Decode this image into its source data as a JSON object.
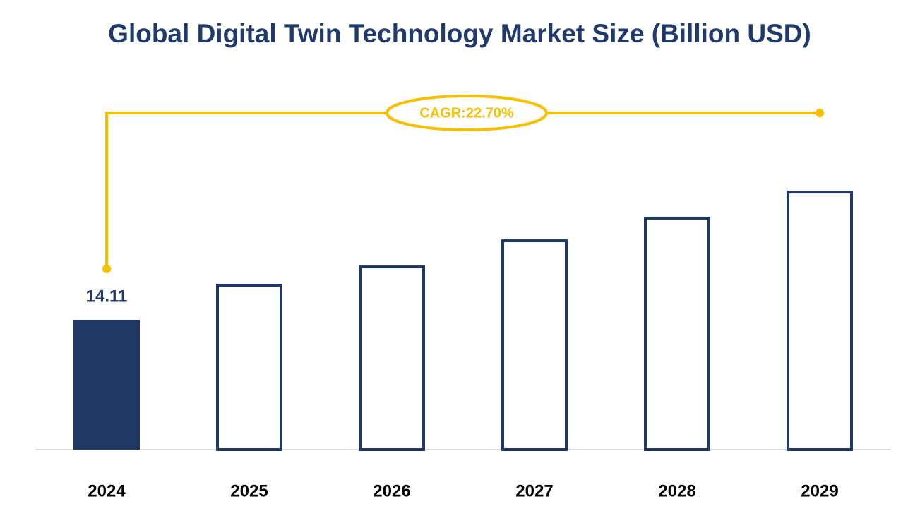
{
  "chart_data": {
    "type": "bar",
    "title": "Global Digital Twin Technology Market Size (Billion USD)",
    "categories": [
      "2024",
      "2025",
      "2026",
      "2027",
      "2028",
      "2029"
    ],
    "values": [
      14.11,
      18.02,
      20.01,
      22.85,
      25.31,
      28.14
    ],
    "color": "#203864",
    "filled_bars": [
      true,
      false,
      false,
      false,
      false,
      false
    ],
    "data_labels": [
      true,
      false,
      false,
      false,
      false,
      false
    ],
    "annotation": "CAGR:22.70%",
    "annotation_color": "#f5c000",
    "ylim": [
      0,
      40
    ]
  }
}
